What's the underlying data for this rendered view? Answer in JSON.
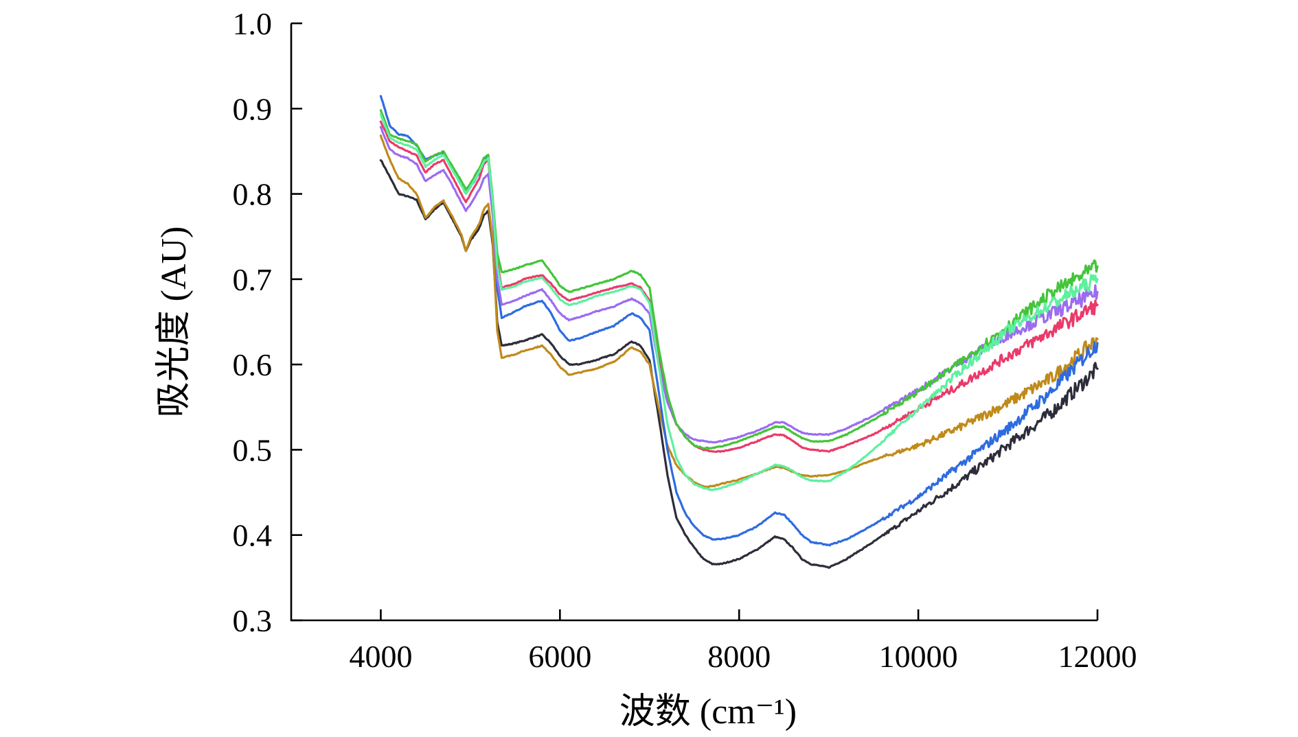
{
  "chart_data": {
    "type": "line",
    "title": "",
    "xlabel": "波数 (cm⁻¹)",
    "ylabel": "吸光度 (AU)",
    "xlim": [
      3000,
      12000
    ],
    "ylim": [
      0.3,
      1.0
    ],
    "xticks": [
      4000,
      6000,
      8000,
      10000,
      12000
    ],
    "yticks": [
      0.3,
      0.4,
      0.5,
      0.6,
      0.7,
      0.8,
      0.9,
      1.0
    ],
    "xtick_labels": [
      "4000",
      "6000",
      "8000",
      "10000",
      "12000"
    ],
    "ytick_labels": [
      "0.3",
      "0.4",
      "0.5",
      "0.6",
      "0.7",
      "0.8",
      "0.9",
      "1.0"
    ],
    "grid": false,
    "legend": "none",
    "series": [
      {
        "color": "#2d2d3a",
        "x": [
          4000,
          4100,
          4200,
          4300,
          4400,
          4500,
          4600,
          4700,
          4800,
          4900,
          4950,
          5000,
          5100,
          5150,
          5200,
          5250,
          5300,
          5350,
          5500,
          5600,
          5800,
          5900,
          6000,
          6100,
          6200,
          6400,
          6600,
          6800,
          6900,
          7000,
          7100,
          7200,
          7300,
          7400,
          7500,
          7600,
          7700,
          7800,
          8000,
          8200,
          8400,
          8500,
          8600,
          8700,
          8800,
          9000,
          9200,
          9500,
          10000,
          10500,
          11000,
          11500,
          12000
        ],
        "y": [
          0.84,
          0.82,
          0.8,
          0.797,
          0.793,
          0.77,
          0.782,
          0.79,
          0.77,
          0.75,
          0.733,
          0.745,
          0.76,
          0.775,
          0.78,
          0.74,
          0.65,
          0.622,
          0.625,
          0.628,
          0.635,
          0.625,
          0.61,
          0.6,
          0.6,
          0.605,
          0.612,
          0.627,
          0.622,
          0.605,
          0.54,
          0.47,
          0.42,
          0.4,
          0.385,
          0.372,
          0.366,
          0.366,
          0.372,
          0.383,
          0.398,
          0.395,
          0.385,
          0.372,
          0.366,
          0.362,
          0.372,
          0.392,
          0.428,
          0.465,
          0.505,
          0.545,
          0.595
        ]
      },
      {
        "color": "#c08a1a",
        "x": [
          4000,
          4100,
          4200,
          4300,
          4400,
          4500,
          4600,
          4700,
          4800,
          4900,
          4950,
          5000,
          5100,
          5150,
          5200,
          5250,
          5300,
          5350,
          5500,
          5600,
          5800,
          5900,
          6000,
          6100,
          6200,
          6400,
          6600,
          6800,
          6900,
          7000,
          7100,
          7200,
          7300,
          7400,
          7500,
          7600,
          7700,
          7800,
          8000,
          8200,
          8400,
          8500,
          8600,
          8700,
          8800,
          9000,
          9200,
          9500,
          10000,
          10500,
          11000,
          11500,
          12000
        ],
        "y": [
          0.868,
          0.84,
          0.818,
          0.812,
          0.8,
          0.772,
          0.785,
          0.792,
          0.773,
          0.752,
          0.733,
          0.748,
          0.765,
          0.782,
          0.788,
          0.745,
          0.64,
          0.608,
          0.612,
          0.616,
          0.622,
          0.612,
          0.597,
          0.588,
          0.59,
          0.595,
          0.603,
          0.62,
          0.615,
          0.6,
          0.55,
          0.505,
          0.482,
          0.47,
          0.462,
          0.457,
          0.457,
          0.46,
          0.465,
          0.472,
          0.48,
          0.479,
          0.474,
          0.47,
          0.469,
          0.47,
          0.476,
          0.488,
          0.505,
          0.528,
          0.555,
          0.585,
          0.63
        ]
      },
      {
        "color": "#2e6be0",
        "x": [
          4000,
          4100,
          4200,
          4300,
          4400,
          4500,
          4600,
          4700,
          4800,
          4900,
          4950,
          5000,
          5100,
          5150,
          5200,
          5250,
          5300,
          5350,
          5500,
          5600,
          5800,
          5900,
          6000,
          6100,
          6200,
          6400,
          6600,
          6800,
          6900,
          7000,
          7100,
          7200,
          7300,
          7400,
          7500,
          7600,
          7700,
          7800,
          8000,
          8200,
          8400,
          8500,
          8600,
          8700,
          8800,
          9000,
          9200,
          9500,
          10000,
          10500,
          11000,
          11500,
          12000
        ],
        "y": [
          0.915,
          0.88,
          0.87,
          0.868,
          0.857,
          0.84,
          0.845,
          0.848,
          0.83,
          0.81,
          0.8,
          0.808,
          0.825,
          0.84,
          0.845,
          0.79,
          0.69,
          0.655,
          0.662,
          0.668,
          0.675,
          0.66,
          0.64,
          0.628,
          0.63,
          0.638,
          0.645,
          0.66,
          0.655,
          0.64,
          0.57,
          0.5,
          0.45,
          0.425,
          0.41,
          0.4,
          0.395,
          0.395,
          0.4,
          0.41,
          0.426,
          0.424,
          0.413,
          0.4,
          0.392,
          0.388,
          0.395,
          0.412,
          0.445,
          0.485,
          0.525,
          0.57,
          0.625
        ]
      },
      {
        "color": "#ea3a6a",
        "x": [
          4000,
          4100,
          4200,
          4300,
          4400,
          4500,
          4600,
          4700,
          4800,
          4900,
          4950,
          5000,
          5100,
          5150,
          5200,
          5250,
          5300,
          5350,
          5500,
          5600,
          5800,
          5900,
          6000,
          6100,
          6200,
          6400,
          6600,
          6800,
          6900,
          7000,
          7100,
          7200,
          7300,
          7400,
          7500,
          7600,
          7700,
          7800,
          8000,
          8200,
          8400,
          8500,
          8600,
          8700,
          8800,
          9000,
          9200,
          9500,
          10000,
          10500,
          11000,
          11500,
          12000
        ],
        "y": [
          0.885,
          0.862,
          0.855,
          0.85,
          0.845,
          0.825,
          0.835,
          0.84,
          0.82,
          0.8,
          0.79,
          0.8,
          0.818,
          0.835,
          0.84,
          0.785,
          0.72,
          0.69,
          0.695,
          0.7,
          0.705,
          0.695,
          0.682,
          0.675,
          0.678,
          0.684,
          0.69,
          0.695,
          0.69,
          0.675,
          0.61,
          0.56,
          0.53,
          0.515,
          0.505,
          0.5,
          0.498,
          0.498,
          0.502,
          0.51,
          0.518,
          0.517,
          0.51,
          0.503,
          0.5,
          0.498,
          0.505,
          0.518,
          0.548,
          0.578,
          0.61,
          0.64,
          0.67
        ]
      },
      {
        "color": "#9b6cf0",
        "x": [
          4000,
          4100,
          4200,
          4300,
          4400,
          4500,
          4600,
          4700,
          4800,
          4900,
          4950,
          5000,
          5100,
          5150,
          5200,
          5250,
          5300,
          5350,
          5500,
          5600,
          5800,
          5900,
          6000,
          6100,
          6200,
          6400,
          6600,
          6800,
          6900,
          7000,
          7100,
          7200,
          7300,
          7400,
          7500,
          7600,
          7700,
          7800,
          8000,
          8200,
          8400,
          8500,
          8600,
          8700,
          8800,
          9000,
          9200,
          9500,
          10000,
          10500,
          11000,
          11500,
          12000
        ],
        "y": [
          0.878,
          0.852,
          0.845,
          0.842,
          0.835,
          0.815,
          0.822,
          0.828,
          0.81,
          0.79,
          0.78,
          0.788,
          0.805,
          0.818,
          0.823,
          0.775,
          0.7,
          0.67,
          0.675,
          0.68,
          0.688,
          0.675,
          0.66,
          0.652,
          0.655,
          0.662,
          0.668,
          0.677,
          0.672,
          0.66,
          0.6,
          0.555,
          0.53,
          0.518,
          0.512,
          0.51,
          0.509,
          0.51,
          0.515,
          0.522,
          0.532,
          0.532,
          0.526,
          0.52,
          0.518,
          0.518,
          0.525,
          0.54,
          0.57,
          0.605,
          0.635,
          0.66,
          0.685
        ]
      },
      {
        "color": "#44c43a",
        "x": [
          4000,
          4100,
          4200,
          4300,
          4400,
          4500,
          4600,
          4700,
          4800,
          4900,
          4950,
          5000,
          5100,
          5150,
          5200,
          5250,
          5300,
          5350,
          5500,
          5600,
          5800,
          5900,
          6000,
          6100,
          6200,
          6400,
          6600,
          6800,
          6900,
          7000,
          7100,
          7200,
          7300,
          7400,
          7500,
          7600,
          7700,
          7800,
          8000,
          8200,
          8400,
          8500,
          8600,
          8700,
          8800,
          9000,
          9200,
          9500,
          10000,
          10500,
          11000,
          11500,
          12000
        ],
        "y": [
          0.898,
          0.87,
          0.865,
          0.862,
          0.858,
          0.838,
          0.845,
          0.85,
          0.832,
          0.815,
          0.805,
          0.812,
          0.83,
          0.842,
          0.846,
          0.795,
          0.73,
          0.708,
          0.712,
          0.716,
          0.722,
          0.708,
          0.692,
          0.685,
          0.688,
          0.694,
          0.7,
          0.71,
          0.705,
          0.69,
          0.62,
          0.565,
          0.53,
          0.515,
          0.505,
          0.502,
          0.502,
          0.504,
          0.51,
          0.518,
          0.527,
          0.527,
          0.52,
          0.514,
          0.51,
          0.51,
          0.518,
          0.535,
          0.568,
          0.605,
          0.645,
          0.685,
          0.715
        ]
      },
      {
        "color": "#5ef0a0",
        "x": [
          4000,
          4100,
          4200,
          4300,
          4400,
          4500,
          4600,
          4700,
          4800,
          4900,
          4950,
          5000,
          5100,
          5150,
          5200,
          5250,
          5300,
          5350,
          5500,
          5600,
          5800,
          5900,
          6000,
          6100,
          6200,
          6400,
          6600,
          6800,
          6900,
          7000,
          7100,
          7200,
          7300,
          7400,
          7500,
          7600,
          7700,
          7800,
          8000,
          8200,
          8400,
          8500,
          8600,
          8700,
          8800,
          9000,
          9200,
          9500,
          10000,
          10500,
          11000,
          11500,
          12000
        ],
        "y": [
          0.893,
          0.866,
          0.86,
          0.857,
          0.852,
          0.832,
          0.84,
          0.846,
          0.828,
          0.81,
          0.8,
          0.808,
          0.826,
          0.838,
          0.842,
          0.79,
          0.715,
          0.688,
          0.692,
          0.697,
          0.702,
          0.69,
          0.676,
          0.67,
          0.672,
          0.68,
          0.685,
          0.692,
          0.688,
          0.672,
          0.6,
          0.53,
          0.49,
          0.47,
          0.46,
          0.455,
          0.453,
          0.455,
          0.462,
          0.472,
          0.482,
          0.481,
          0.475,
          0.468,
          0.464,
          0.463,
          0.475,
          0.5,
          0.548,
          0.595,
          0.64,
          0.672,
          0.7
        ]
      }
    ]
  }
}
